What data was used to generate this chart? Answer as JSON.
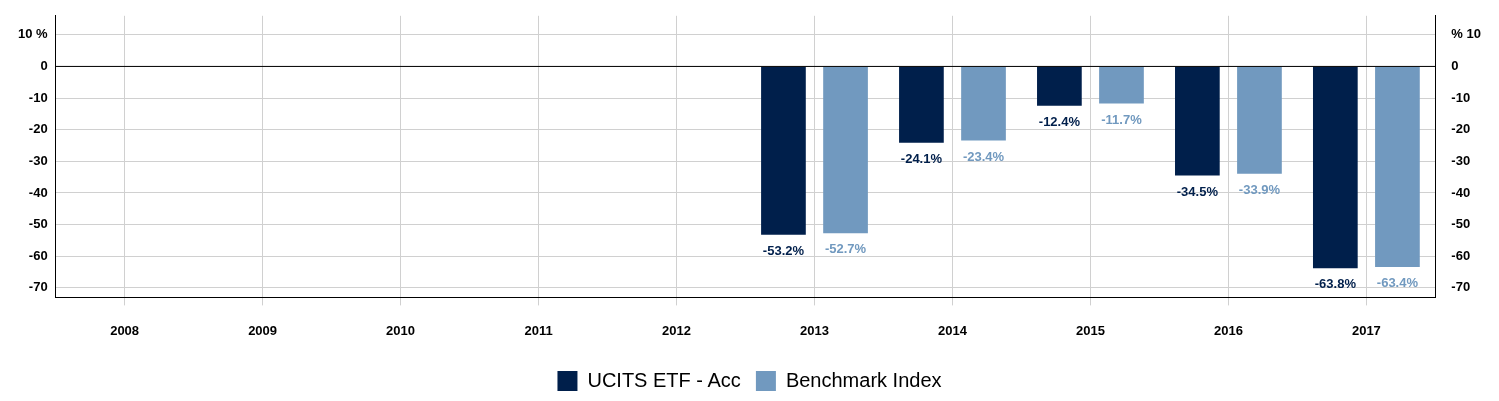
{
  "chart_data": {
    "type": "bar",
    "categories": [
      "2008",
      "2009",
      "2010",
      "2011",
      "2012",
      "2013",
      "2014",
      "2015",
      "2016",
      "2017"
    ],
    "series": [
      {
        "name": "UCITS ETF - Acc",
        "color": "#001f4b",
        "values": [
          null,
          null,
          null,
          null,
          null,
          -53.2,
          -24.1,
          -12.4,
          -34.5,
          -63.8
        ],
        "value_labels": [
          null,
          null,
          null,
          null,
          null,
          "-53.2%",
          "-24.1%",
          "-12.4%",
          "-34.5%",
          "-63.8%"
        ]
      },
      {
        "name": "Benchmark Index",
        "color": "#7199bf",
        "values": [
          null,
          null,
          null,
          null,
          null,
          -52.7,
          -23.4,
          -11.7,
          -33.9,
          -63.4
        ],
        "value_labels": [
          null,
          null,
          null,
          null,
          null,
          "-52.7%",
          "-23.4%",
          "-11.7%",
          "-33.9%",
          "-63.4%"
        ]
      }
    ],
    "ylim": [
      -73,
      16
    ],
    "yticks": [
      {
        "value": 10,
        "label": "10 %"
      },
      0,
      -10,
      -20,
      -30,
      -40,
      -50,
      -60,
      -70
    ],
    "y2lim": [
      -73,
      16
    ],
    "y2ticks": [
      {
        "value": 10,
        "label": "% 10"
      },
      0,
      -10,
      -20,
      -30,
      -40,
      -50,
      -60,
      -70
    ],
    "ref_lines": [
      {
        "axis": "y",
        "value": 0,
        "color": "#000000"
      }
    ],
    "grid": true,
    "legend": "bottom"
  }
}
